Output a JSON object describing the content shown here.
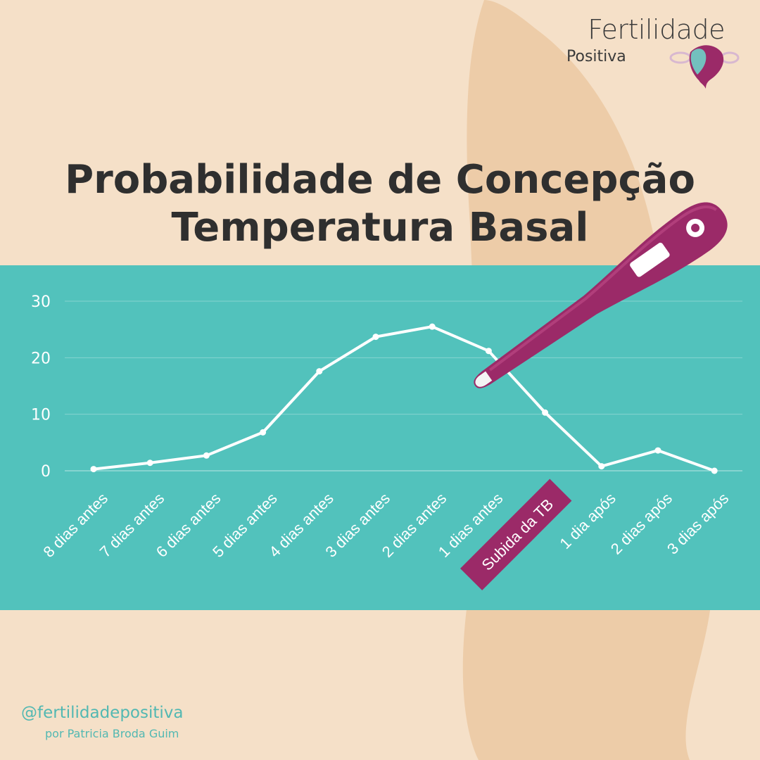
{
  "brand": {
    "name": "Fertilidade",
    "sub": "Positiva"
  },
  "title": {
    "line1": "Probabilidade de Concepção",
    "line2": "Temperatura Basal"
  },
  "footer": {
    "handle": "@fertilidadepositiva",
    "author": "por Patricia Broda Guim"
  },
  "colors": {
    "background": "#f5e0c8",
    "band": "#52c2bc",
    "accent": "#9b2a68",
    "text": "#2f2f2f",
    "line": "#ffffff"
  },
  "icons": [
    "thermometer-icon",
    "uterus-logo-icon"
  ],
  "chart_data": {
    "type": "line",
    "categories": [
      "8 dias antes",
      "7 dias antes",
      "6 dias antes",
      "5 dias antes",
      "4 dias antes",
      "3 dias antes",
      "2 dias antes",
      "1 dias antes",
      "Subida da TB",
      "1 dia após",
      "2 dias após",
      "3 dias após"
    ],
    "series": [
      {
        "values": [
          0.3,
          1.4,
          2.7,
          6.8,
          17.6,
          23.7,
          25.5,
          21.2,
          10.3,
          0.8,
          3.6,
          0.0
        ]
      }
    ],
    "highlight_category": "Subida da TB",
    "yticks": [
      "0",
      "10",
      "20",
      "30"
    ],
    "ylim": [
      0,
      30
    ],
    "grid": true,
    "title": "",
    "xlabel": "",
    "ylabel": ""
  }
}
